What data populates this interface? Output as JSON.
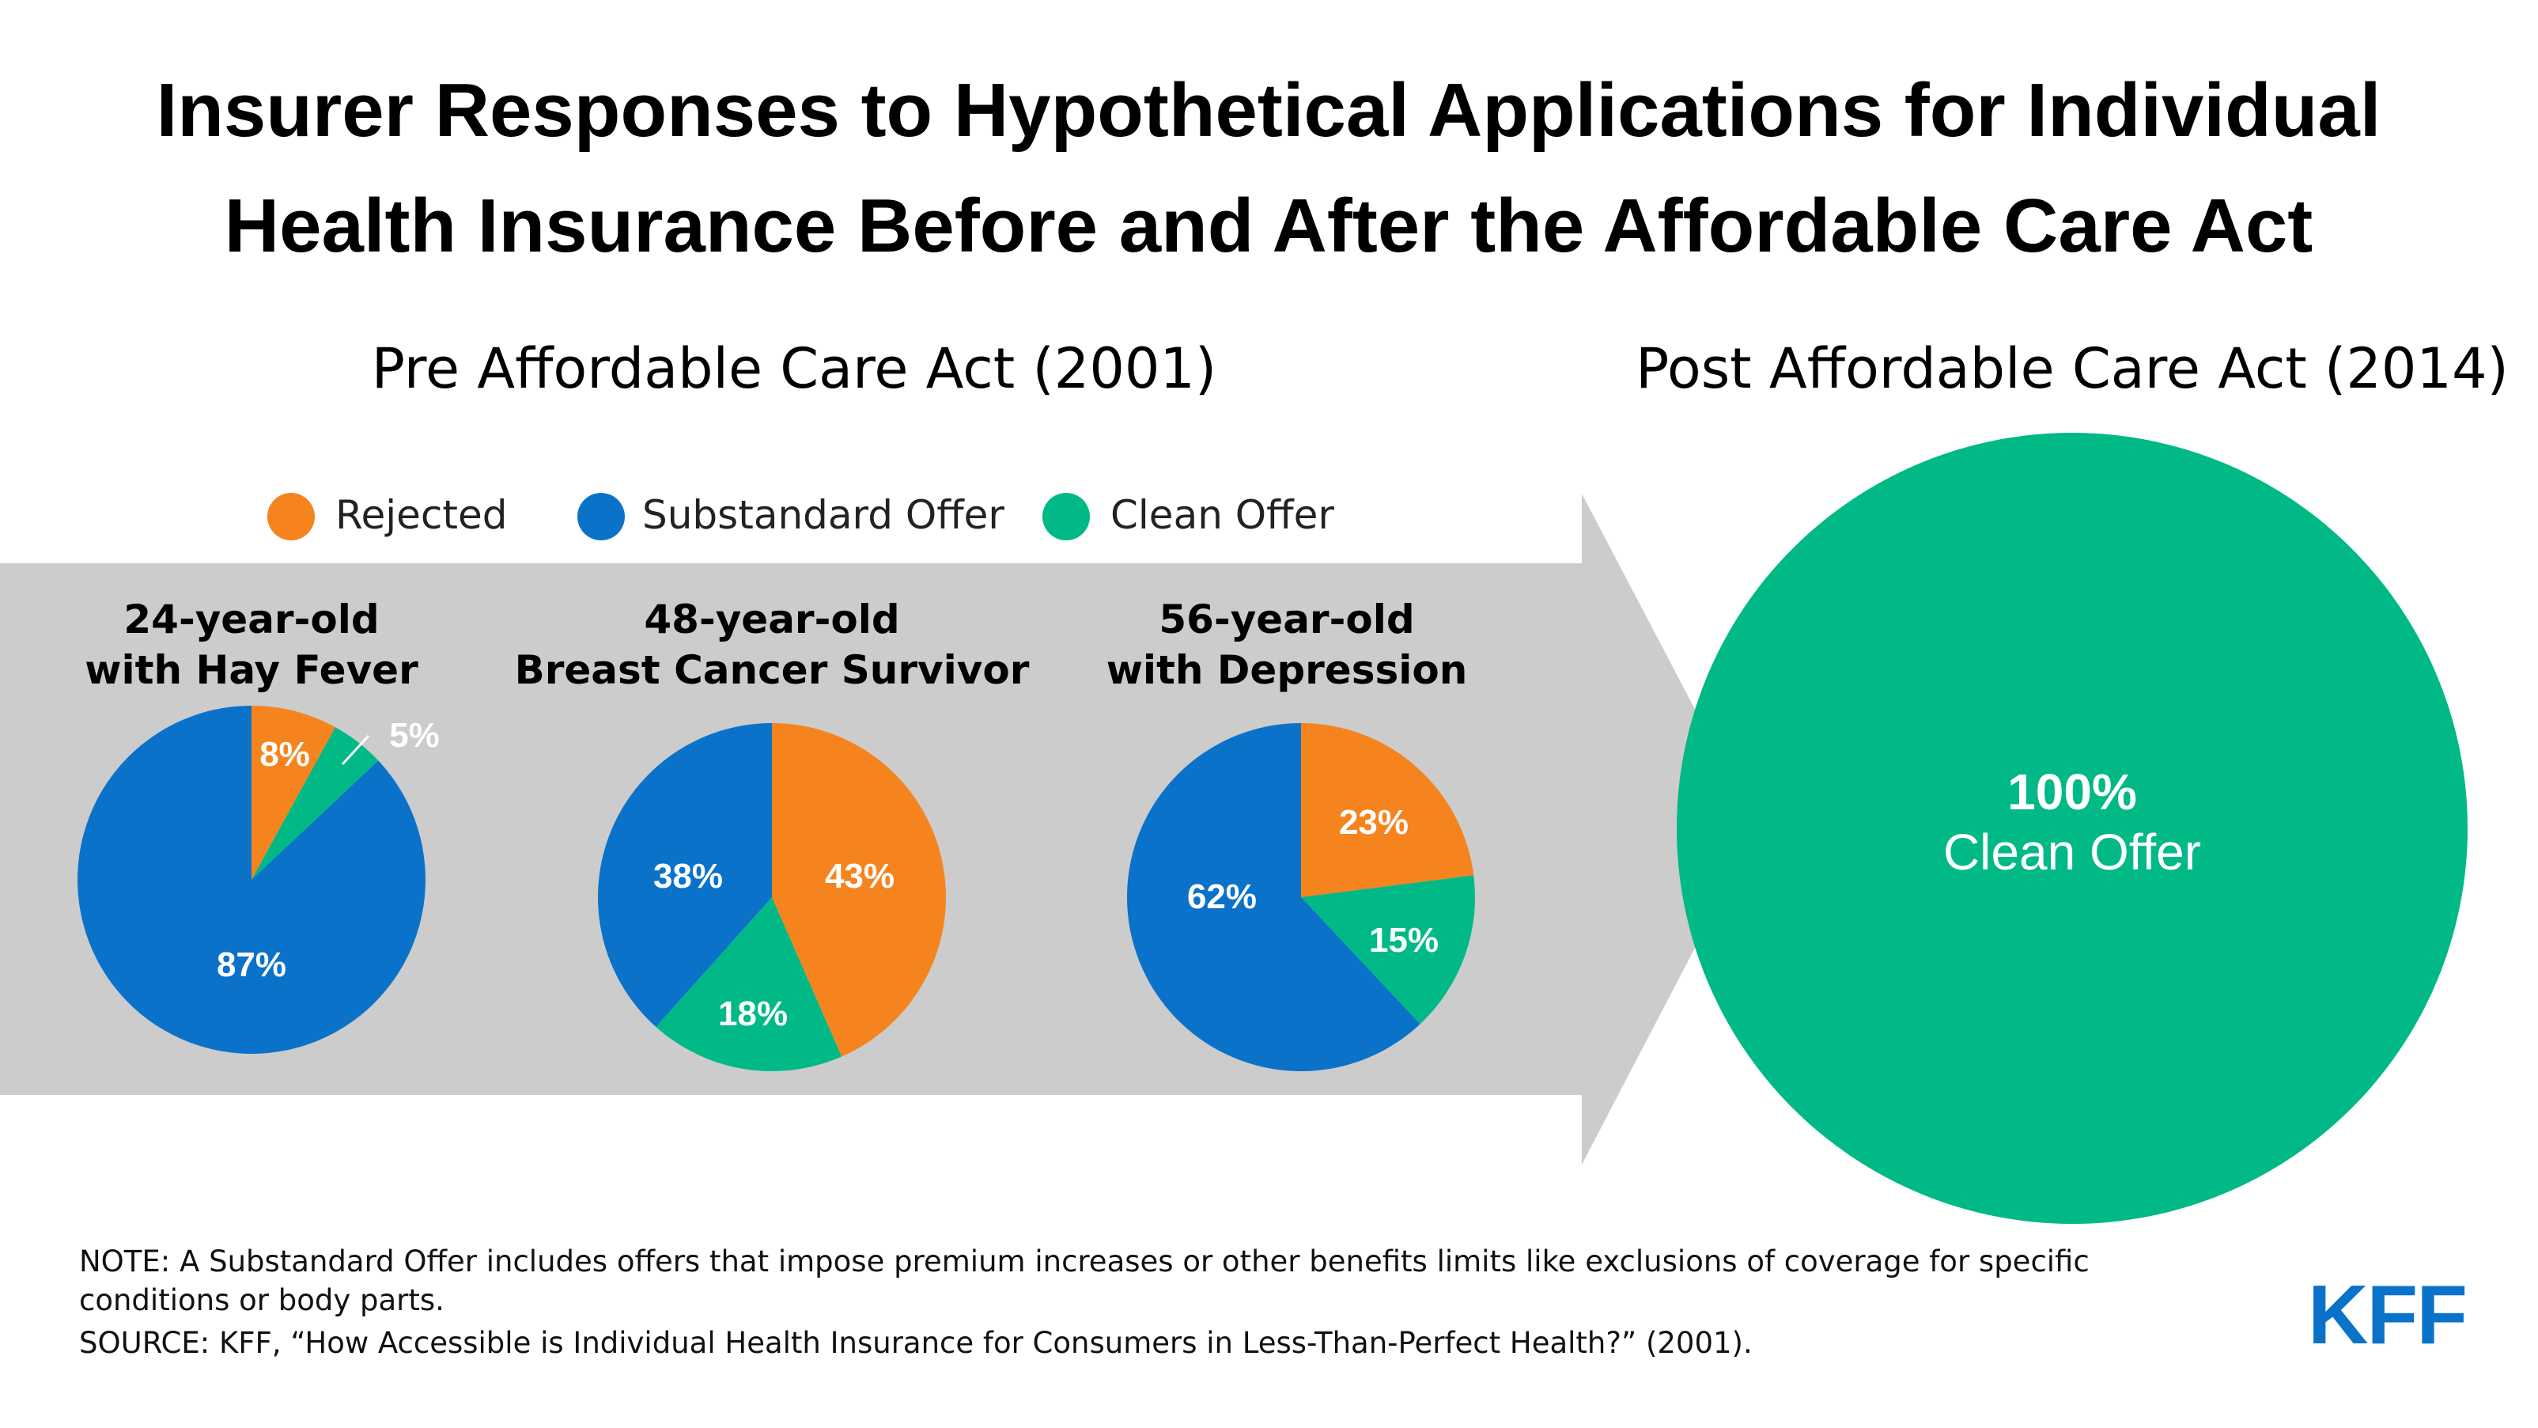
{
  "title_line1": "Insurer Responses to Hypothetical Applications for Individual",
  "title_line2": "Health Insurance Before and After the Affordable Care Act",
  "pre_heading": "Pre Affordable Care Act (2001)",
  "post_heading": "Post Affordable Care Act (2014)",
  "legend": [
    {
      "label": "Rejected",
      "color": "#f5841f"
    },
    {
      "label": "Substandard Offer",
      "color": "#0a72c9"
    },
    {
      "label": "Clean Offer",
      "color": "#00b987"
    }
  ],
  "arrow_color": "#cccccc",
  "chart_data": [
    {
      "type": "pie",
      "title": [
        "24-year-old",
        "with Hay Fever"
      ],
      "slices": [
        {
          "label": "Rejected",
          "value": 8
        },
        {
          "label": "Clean Offer",
          "value": 5
        },
        {
          "label": "Substandard Offer",
          "value": 87
        }
      ],
      "value_labels": [
        "8%",
        "5%",
        "87%"
      ]
    },
    {
      "type": "pie",
      "title": [
        "48-year-old",
        "Breast Cancer Survivor"
      ],
      "slices": [
        {
          "label": "Rejected",
          "value": 43
        },
        {
          "label": "Clean Offer",
          "value": 18
        },
        {
          "label": "Substandard Offer",
          "value": 38
        }
      ],
      "value_labels": [
        "43%",
        "18%",
        "38%"
      ]
    },
    {
      "type": "pie",
      "title": [
        "56-year-old",
        "with Depression"
      ],
      "slices": [
        {
          "label": "Rejected",
          "value": 23
        },
        {
          "label": "Clean Offer",
          "value": 15
        },
        {
          "label": "Substandard Offer",
          "value": 62
        }
      ],
      "value_labels": [
        "23%",
        "15%",
        "62%"
      ]
    },
    {
      "type": "pie",
      "title": [],
      "slices": [
        {
          "label": "Clean Offer",
          "value": 100
        }
      ],
      "value_labels": [
        "100%"
      ],
      "center_caption": "Clean Offer"
    }
  ],
  "note_line1": "NOTE: A Substandard Offer includes offers that impose premium increases or other benefits limits like exclusions of coverage for specific",
  "note_line2": "conditions or body parts.",
  "source_line": "SOURCE: KFF, “How Accessible is Individual Health Insurance for Consumers in Less-Than-Perfect Health?” (2001).",
  "logo_text": "KFF"
}
